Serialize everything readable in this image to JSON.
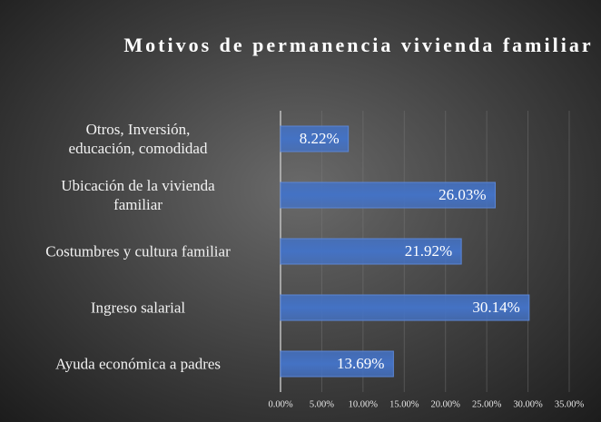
{
  "chart_data": {
    "type": "bar",
    "orientation": "horizontal",
    "title": "Motivos de permanencia vivienda familiar",
    "categories": [
      "Otros, Inversión,\neducación, comodidad",
      "Ubicación de la vivienda\nfamiliar",
      "Costumbres y cultura familiar",
      "Ingreso salarial",
      "Ayuda económica a padres"
    ],
    "values": [
      8.22,
      26.03,
      21.92,
      30.14,
      13.69
    ],
    "value_labels": [
      "8.22%",
      "26.03%",
      "21.92%",
      "30.14%",
      "13.69%"
    ],
    "color": "#4472c4",
    "xlim": [
      0,
      35
    ],
    "xticks": [
      {
        "value": 0,
        "label": "0.00%"
      },
      {
        "value": 5,
        "label": "5.00%"
      },
      {
        "value": 10,
        "label": "10.00%"
      },
      {
        "value": 15,
        "label": "15.00%"
      },
      {
        "value": 20,
        "label": "20.00%"
      },
      {
        "value": 25,
        "label": "25.00%"
      },
      {
        "value": 30,
        "label": "30.00%"
      },
      {
        "value": 35,
        "label": "35.00%"
      }
    ],
    "grid": true
  }
}
